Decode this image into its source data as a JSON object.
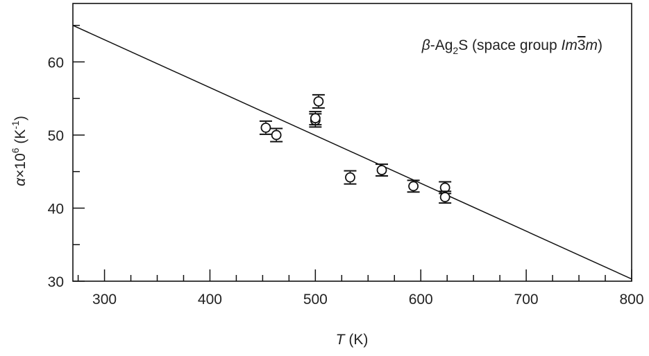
{
  "chart_data": {
    "type": "scatter",
    "title": "",
    "annotation": {
      "prefix": "β",
      "main": "-Ag",
      "sub": "2",
      "rest": "S (space group ",
      "sg1": "Im",
      "sg2": "3",
      "sg3": "m",
      "close": ")"
    },
    "xlabel": {
      "var": "T",
      "unit": " (K)"
    },
    "ylabel": {
      "var": "α",
      "mid": "×10",
      "sup": "6",
      "unit": " (K",
      "unitsup": "-1",
      "close": ")"
    },
    "xlim": [
      270,
      800
    ],
    "ylim": [
      30,
      68
    ],
    "xticks": [
      300,
      400,
      500,
      600,
      700,
      800
    ],
    "yticks": [
      30,
      40,
      50,
      60
    ],
    "grid": false,
    "points": [
      {
        "x": 453,
        "y": 51.0,
        "err": 0.9
      },
      {
        "x": 463,
        "y": 50.0,
        "err": 0.9
      },
      {
        "x": 500,
        "y": 52.0,
        "err": 0.9
      },
      {
        "x": 500,
        "y": 52.3,
        "err": 0.9
      },
      {
        "x": 503,
        "y": 54.6,
        "err": 0.9
      },
      {
        "x": 533,
        "y": 44.2,
        "err": 0.9
      },
      {
        "x": 563,
        "y": 45.2,
        "err": 0.8
      },
      {
        "x": 593,
        "y": 43.0,
        "err": 0.8
      },
      {
        "x": 623,
        "y": 42.8,
        "err": 0.8
      },
      {
        "x": 623,
        "y": 41.5,
        "err": 0.8
      }
    ],
    "fit_line": {
      "x": [
        270,
        800
      ],
      "y": [
        65.0,
        30.3
      ]
    }
  }
}
